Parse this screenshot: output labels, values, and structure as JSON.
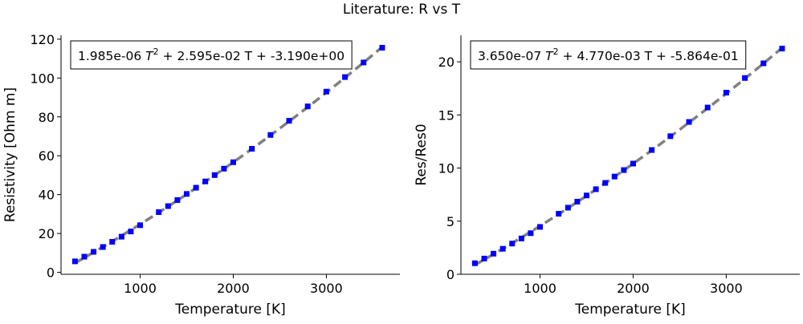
{
  "suptitle": "Literature: R vs T",
  "chart_data": [
    {
      "type": "scatter",
      "title": "",
      "xlabel": "Temperature [K]",
      "ylabel": "Resistivity [Ohm m]",
      "xlim": [
        150,
        3790
      ],
      "ylim": [
        -1,
        122
      ],
      "xticks": [
        1000,
        2000,
        3000
      ],
      "yticks": [
        0,
        20,
        40,
        60,
        80,
        100,
        120
      ],
      "fit_annotation": {
        "a": "1.985e-06",
        "b": "2.595e-02",
        "c": "-3.190e+00"
      },
      "fit_coeffs": [
        1.985e-06,
        0.02595,
        -3.19
      ],
      "fit_line_color": "#808080",
      "marker_color": "#0000ff",
      "series": [
        {
          "x": [
            300,
            400,
            500,
            600,
            700,
            800,
            900,
            1000,
            1200,
            1300,
            1400,
            1500,
            1600,
            1700,
            1800,
            1900,
            2000,
            2200,
            2400,
            2600,
            2800,
            3000,
            3200,
            3400,
            3600
          ],
          "y": [
            5.65,
            8.06,
            10.56,
            13.04,
            15.7,
            18.34,
            21.03,
            24.25,
            30.98,
            34.08,
            37.19,
            40.36,
            43.55,
            46.78,
            50.05,
            53.35,
            56.67,
            63.6,
            70.7,
            78.0,
            85.4,
            93.0,
            100.5,
            108.0,
            115.6
          ]
        }
      ]
    },
    {
      "type": "scatter",
      "title": "",
      "xlabel": "Temperature [K]",
      "ylabel": "Res/Res0",
      "xlim": [
        150,
        3790
      ],
      "ylim": [
        0,
        22.5
      ],
      "xticks": [
        1000,
        2000,
        3000
      ],
      "yticks": [
        0,
        5,
        10,
        15,
        20
      ],
      "fit_annotation": {
        "a": "3.650e-07",
        "b": "4.770e-03",
        "c": "-5.864e-01"
      },
      "fit_coeffs": [
        3.65e-07,
        0.00477,
        -0.5864
      ],
      "fit_line_color": "#808080",
      "marker_color": "#0000ff",
      "series": [
        {
          "x": [
            300,
            400,
            500,
            600,
            700,
            800,
            900,
            1000,
            1200,
            1300,
            1400,
            1500,
            1600,
            1700,
            1800,
            1900,
            2000,
            2200,
            2400,
            2600,
            2800,
            3000,
            3200,
            3400,
            3600
          ],
          "y": [
            1.04,
            1.48,
            1.94,
            2.4,
            2.89,
            3.37,
            3.87,
            4.46,
            5.7,
            6.27,
            6.84,
            7.42,
            8.01,
            8.6,
            9.2,
            9.81,
            10.42,
            11.7,
            13.0,
            14.34,
            15.7,
            17.1,
            18.48,
            19.86,
            21.25
          ]
        }
      ]
    }
  ]
}
